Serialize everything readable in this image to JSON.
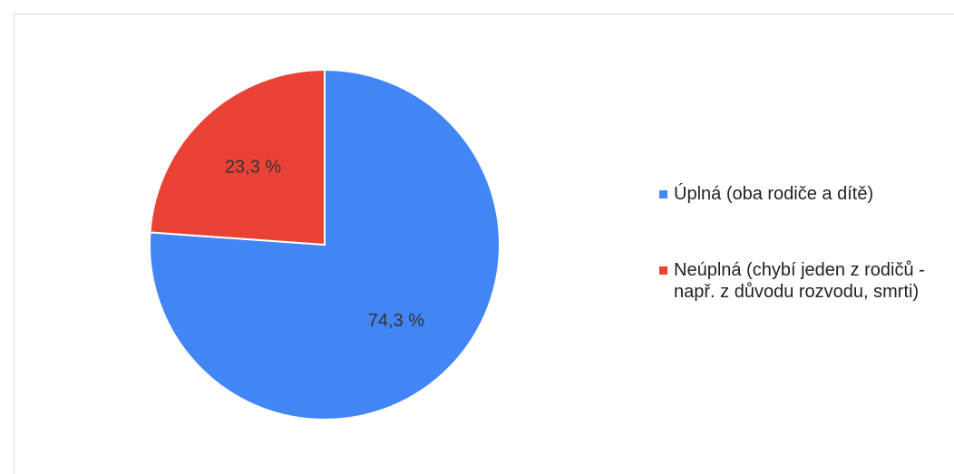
{
  "chart_data": {
    "type": "pie",
    "categories": [
      "Úplná (oba rodiče a dítě)",
      "Neúplná (chybí jeden z rodičů - např. z důvodu rozvodu, smrti)"
    ],
    "values": [
      74.3,
      23.3
    ],
    "value_labels": [
      "74,3 %",
      "23,3 %"
    ],
    "colors": [
      "#4285f4",
      "#ea4335"
    ],
    "legend": "right"
  }
}
